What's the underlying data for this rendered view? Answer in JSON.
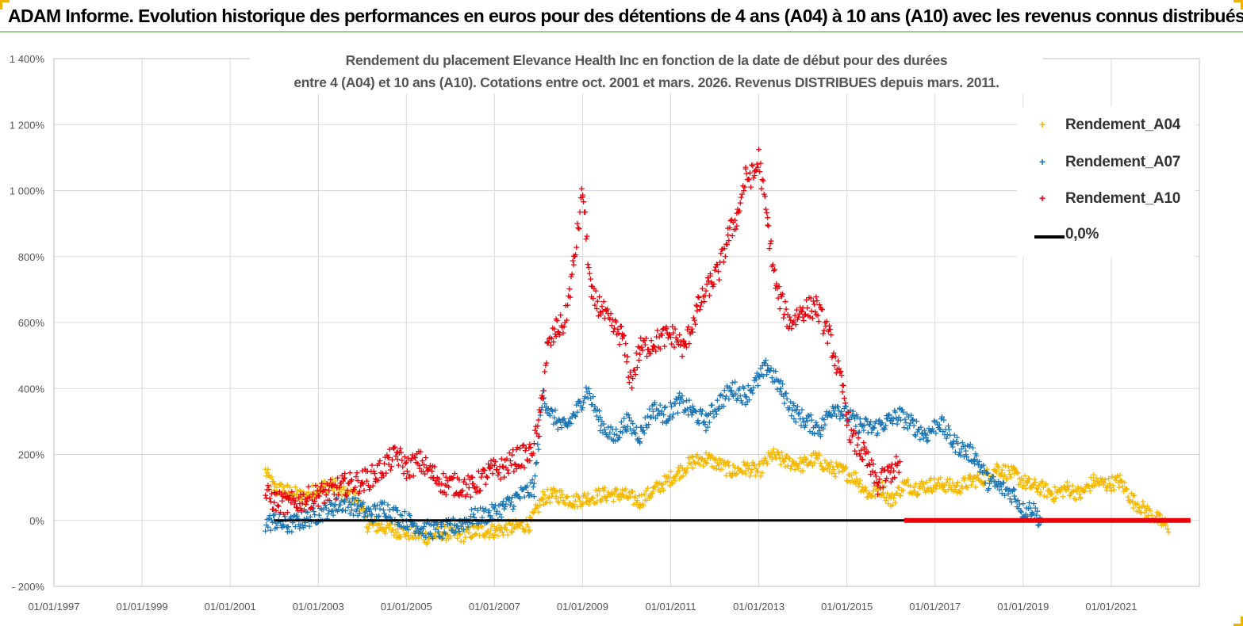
{
  "banner": {
    "title": "ADAM Informe. Evolution historique des performances en euros pour des détentions de 4 ans (A04) à 10 ans (A10) avec les revenus connus distribués"
  },
  "colors": {
    "A04": "#f5b800",
    "A07": "#1f77b4",
    "A10": "#e8000b",
    "zero": "#000000",
    "grid": "#d9d9d9",
    "axis_text": "#555555"
  },
  "chart_data": {
    "type": "scatter",
    "title_line1": "Rendement du placement Elevance Health Inc en fonction de la date de début pour des durées",
    "title_line2": "entre 4 (A04) et 10 ans (A10). Cotations entre oct. 2001 et mars. 2026. Revenus DISTRIBUES depuis mars. 2011.",
    "ylim": [
      -200,
      1400
    ],
    "yticks": [
      -200,
      0,
      200,
      400,
      600,
      800,
      1000,
      1200,
      1400
    ],
    "ytick_labels": [
      "- 200%",
      "0%",
      "200%",
      "400%",
      "600%",
      "800%",
      "1 000%",
      "1 200%",
      "1 400%"
    ],
    "xlim": [
      1997.0,
      2023.0
    ],
    "xticks": [
      1997,
      1999,
      2001,
      2003,
      2005,
      2007,
      2009,
      2011,
      2013,
      2015,
      2017,
      2019,
      2021
    ],
    "xtick_labels": [
      "01/01/1997",
      "01/01/1999",
      "01/01/2001",
      "01/01/2003",
      "01/01/2005",
      "01/01/2007",
      "01/01/2009",
      "01/01/2011",
      "01/01/2013",
      "01/01/2015",
      "01/01/2017",
      "01/01/2019",
      "01/01/2021"
    ],
    "legend": [
      "Rendement_A04",
      "Rendement_A07",
      "Rendement_A10",
      "0,0%"
    ],
    "legend_position": "top-right",
    "series": [
      {
        "name": "Rendement_A04",
        "x": [
          2001.8,
          2002.0,
          2002.3,
          2002.7,
          2003.0,
          2003.3,
          2003.6,
          2003.9,
          2004.1,
          2004.5,
          2004.8,
          2005.2,
          2005.5,
          2005.8,
          2006.2,
          2006.6,
          2007.0,
          2007.4,
          2007.8,
          2008.1,
          2008.4,
          2008.8,
          2009.1,
          2009.5,
          2009.9,
          2010.3,
          2010.6,
          2010.9,
          2011.2,
          2011.5,
          2011.8,
          2012.1,
          2012.4,
          2012.7,
          2013.0,
          2013.3,
          2013.6,
          2014.0,
          2014.3,
          2014.6,
          2014.9,
          2015.2,
          2015.5,
          2015.8,
          2016.0,
          2016.3,
          2016.6,
          2016.9,
          2017.2,
          2017.5,
          2017.8,
          2018.1,
          2018.4,
          2018.8,
          2019.1,
          2019.4,
          2019.7,
          2020.0,
          2020.3,
          2020.6,
          2020.9,
          2021.2,
          2021.5,
          2021.8,
          2022.1,
          2022.3
        ],
        "y": [
          150,
          100,
          90,
          70,
          100,
          110,
          80,
          70,
          -10,
          -20,
          -30,
          -40,
          -50,
          -35,
          -45,
          -30,
          -30,
          -20,
          -10,
          70,
          80,
          60,
          70,
          80,
          80,
          60,
          90,
          120,
          150,
          180,
          190,
          170,
          150,
          160,
          150,
          200,
          180,
          170,
          190,
          160,
          150,
          130,
          80,
          100,
          60,
          110,
          100,
          110,
          110,
          100,
          120,
          130,
          160,
          140,
          110,
          100,
          80,
          100,
          80,
          120,
          110,
          120,
          60,
          30,
          0,
          -20
        ]
      },
      {
        "name": "Rendement_A07",
        "x": [
          2001.8,
          2002.0,
          2002.3,
          2002.7,
          2003.0,
          2003.3,
          2003.6,
          2003.9,
          2004.2,
          2004.5,
          2004.8,
          2005.1,
          2005.4,
          2005.8,
          2006.2,
          2006.5,
          2006.9,
          2007.2,
          2007.5,
          2007.9,
          2008.1,
          2008.3,
          2008.6,
          2008.9,
          2009.1,
          2009.4,
          2009.7,
          2010.0,
          2010.3,
          2010.6,
          2010.9,
          2011.2,
          2011.5,
          2011.8,
          2012.1,
          2012.4,
          2012.7,
          2013.0,
          2013.2,
          2013.5,
          2013.8,
          2014.1,
          2014.4,
          2014.7,
          2015.0,
          2015.3,
          2015.6,
          2015.9,
          2016.2,
          2016.5,
          2016.8,
          2017.1,
          2017.4,
          2017.7,
          2017.9,
          2018.2,
          2018.5,
          2018.8,
          2019.0,
          2019.2,
          2019.4
        ],
        "y": [
          -10,
          0,
          -15,
          5,
          20,
          40,
          55,
          40,
          20,
          40,
          15,
          -5,
          -25,
          -30,
          -10,
          10,
          20,
          40,
          70,
          100,
          380,
          320,
          280,
          340,
          400,
          300,
          250,
          300,
          260,
          340,
          320,
          360,
          330,
          300,
          360,
          400,
          380,
          430,
          470,
          400,
          330,
          300,
          280,
          350,
          320,
          290,
          280,
          300,
          320,
          290,
          260,
          300,
          240,
          210,
          200,
          120,
          100,
          80,
          30,
          40,
          0
        ]
      },
      {
        "name": "Rendement_A10",
        "x": [
          2001.8,
          2002.0,
          2002.3,
          2002.6,
          2003.0,
          2003.3,
          2003.6,
          2004.0,
          2004.3,
          2004.6,
          2004.8,
          2005.0,
          2005.3,
          2005.6,
          2005.9,
          2006.2,
          2006.5,
          2006.9,
          2007.2,
          2007.5,
          2007.8,
          2008.0,
          2008.2,
          2008.4,
          2008.6,
          2008.8,
          2009.0,
          2009.2,
          2009.4,
          2009.6,
          2009.9,
          2010.1,
          2010.3,
          2010.6,
          2010.9,
          2011.1,
          2011.3,
          2011.6,
          2011.9,
          2012.1,
          2012.3,
          2012.5,
          2012.7,
          2012.9,
          2013.0,
          2013.2,
          2013.4,
          2013.7,
          2014.0,
          2014.3,
          2014.6,
          2014.9,
          2015.1,
          2015.4,
          2015.7,
          2016.0,
          2016.2
        ],
        "y": [
          80,
          60,
          50,
          60,
          80,
          90,
          110,
          120,
          140,
          180,
          200,
          160,
          180,
          140,
          110,
          110,
          100,
          150,
          160,
          190,
          200,
          280,
          520,
          580,
          600,
          780,
          1000,
          680,
          650,
          600,
          560,
          420,
          520,
          540,
          560,
          560,
          520,
          640,
          720,
          760,
          860,
          920,
          1040,
          1050,
          1100,
          900,
          700,
          600,
          640,
          650,
          560,
          400,
          250,
          200,
          110,
          150,
          170
        ]
      },
      {
        "name": "0,0%",
        "x": [
          2002.0,
          2022.8
        ],
        "y": [
          0,
          0
        ]
      }
    ]
  }
}
